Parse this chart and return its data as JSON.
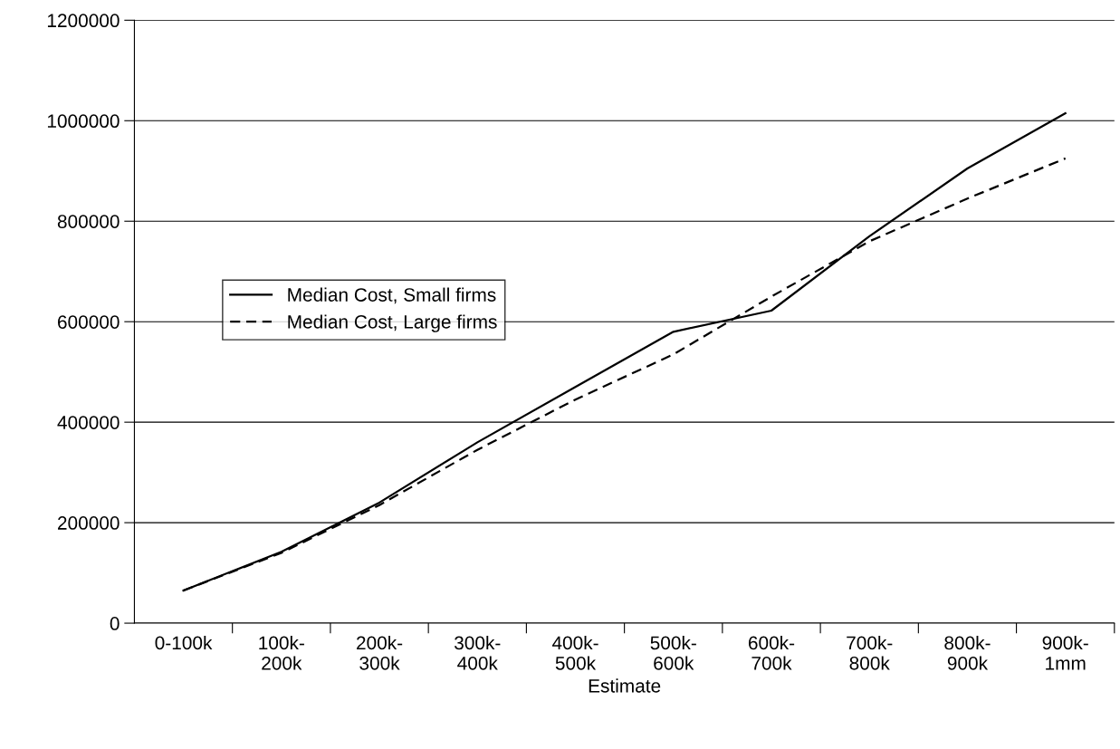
{
  "chart_data": {
    "type": "line",
    "xlabel": "Estimate",
    "categories": [
      "0-100k",
      "100k-\n200k",
      "200k-\n300k",
      "300k-\n400k",
      "400k-\n500k",
      "500k-\n600k",
      "600k-\n700k",
      "700k-\n800k",
      "800k-\n900k",
      "900k-\n1mm"
    ],
    "series": [
      {
        "name": "Median Cost, Small firms",
        "color": "#000000",
        "line_style": "solid",
        "values": [
          65000,
          142000,
          240000,
          360000,
          470000,
          580000,
          622000,
          770000,
          905000,
          1015000
        ]
      },
      {
        "name": "Median Cost, Large firms",
        "color": "#000000",
        "line_style": "dashed",
        "values": [
          65000,
          140000,
          235000,
          345000,
          445000,
          535000,
          650000,
          760000,
          845000,
          925000
        ]
      }
    ],
    "ylim": [
      0,
      1200000
    ],
    "yticks": [
      0,
      200000,
      400000,
      600000,
      800000,
      1000000,
      1200000
    ],
    "grid": "y",
    "legend": "left",
    "marker": "none"
  }
}
